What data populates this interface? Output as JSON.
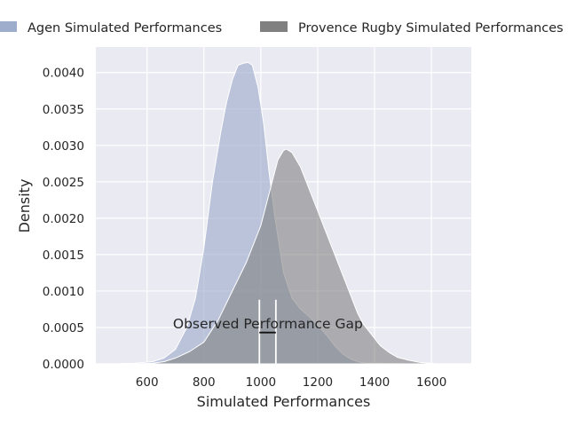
{
  "chart_data": {
    "type": "area",
    "title": "",
    "xlabel": "Simulated Performances",
    "ylabel": "Density",
    "xlim": [
      420,
      1740
    ],
    "ylim": [
      0,
      0.00435
    ],
    "x_ticks": [
      600,
      800,
      1000,
      1200,
      1400,
      1600
    ],
    "x_tick_labels": [
      "600",
      "800",
      "1000",
      "1200",
      "1400",
      "1600"
    ],
    "y_ticks": [
      0,
      0.0005,
      0.001,
      0.0015,
      0.002,
      0.0025,
      0.003,
      0.0035,
      0.004
    ],
    "y_tick_labels": [
      "0.0000",
      "0.0005",
      "0.0010",
      "0.0015",
      "0.0020",
      "0.0025",
      "0.0030",
      "0.0035",
      "0.0040"
    ],
    "grid": true,
    "legend_position": "top",
    "series": [
      {
        "name": "Agen Simulated Performances",
        "color": "#9fadcc",
        "x": [
          480,
          560,
          620,
          660,
          700,
          740,
          770,
          800,
          830,
          860,
          880,
          900,
          920,
          940,
          955,
          970,
          990,
          1010,
          1030,
          1050,
          1080,
          1110,
          1140,
          1170,
          1200,
          1230,
          1260,
          1290,
          1320,
          1350,
          1380,
          1420,
          1500,
          1600,
          1680
        ],
        "values": [
          0,
          1e-05,
          3e-05,
          8e-05,
          0.0002,
          0.0005,
          0.0009,
          0.0016,
          0.0025,
          0.0032,
          0.0036,
          0.0039,
          0.0041,
          0.00413,
          0.00414,
          0.0041,
          0.0038,
          0.0033,
          0.0026,
          0.002,
          0.00125,
          0.0009,
          0.00075,
          0.00065,
          0.00053,
          0.0004,
          0.00025,
          0.00013,
          6e-05,
          2e-05,
          1e-05,
          1e-05,
          0,
          0,
          0
        ]
      },
      {
        "name": "Provence Rugby Simulated Performances",
        "color": "#808080",
        "x": [
          480,
          560,
          620,
          660,
          700,
          750,
          800,
          850,
          900,
          950,
          980,
          1000,
          1020,
          1040,
          1060,
          1080,
          1090,
          1110,
          1140,
          1170,
          1200,
          1230,
          1260,
          1290,
          1320,
          1340,
          1360,
          1380,
          1400,
          1420,
          1450,
          1480,
          1520,
          1560,
          1620,
          1690
        ],
        "values": [
          0,
          0,
          1e-05,
          3e-05,
          8e-05,
          0.00017,
          0.0003,
          0.0006,
          0.001,
          0.0014,
          0.0017,
          0.0019,
          0.0022,
          0.0025,
          0.0028,
          0.00293,
          0.00295,
          0.0029,
          0.0027,
          0.0024,
          0.0021,
          0.0018,
          0.0015,
          0.0012,
          0.0009,
          0.0007,
          0.00055,
          0.00045,
          0.00035,
          0.00025,
          0.00016,
          9e-05,
          5e-05,
          2e-05,
          0,
          0
        ]
      }
    ],
    "annotation": {
      "text": "Observed Performance Gap",
      "x": 1025,
      "y": 0.00055,
      "marker_x": [
        995,
        1053
      ],
      "marker_ymax": 0.00088,
      "gap_line_x": [
        995,
        1053
      ],
      "gap_line_y": 0.00043
    }
  }
}
